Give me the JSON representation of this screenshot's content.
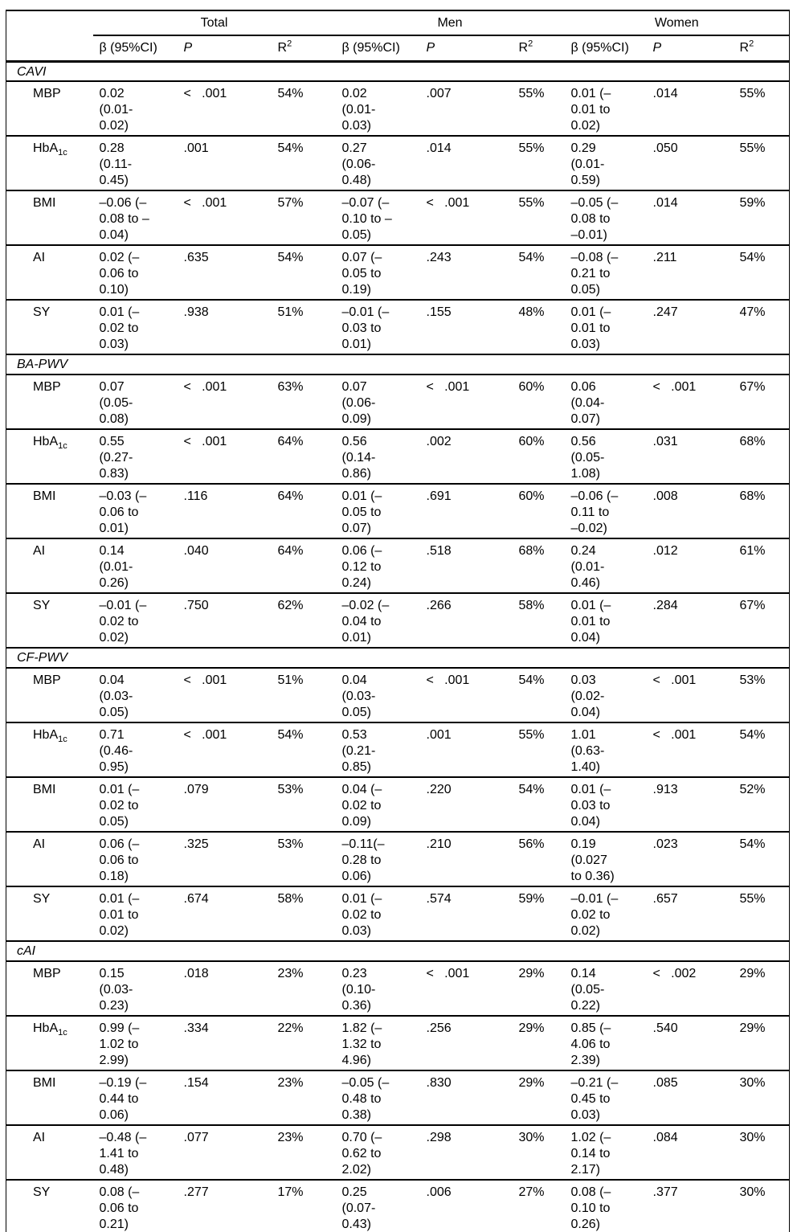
{
  "table": {
    "group_headers": [
      "Total",
      "Men",
      "Women"
    ],
    "col_headers": {
      "beta": "β (95%CI)",
      "p": "P",
      "r2_base": "R",
      "r2_sup": "2"
    },
    "sections": [
      {
        "name": "CAVI",
        "rows": [
          {
            "label": "MBP",
            "sub": "",
            "cells": [
              {
                "beta": "0.02\n(0.01-\n0.02)",
                "p": "<   .001",
                "r2": "54%"
              },
              {
                "beta": "0.02\n(0.01-\n0.03)",
                "p": ".007",
                "r2": "55%"
              },
              {
                "beta": "0.01 (–\n0.01 to\n0.02)",
                "p": ".014",
                "r2": "55%"
              }
            ]
          },
          {
            "label": "HbA",
            "sub": "1c",
            "cells": [
              {
                "beta": "0.28\n(0.11-\n0.45)",
                "p": ".001",
                "r2": "54%"
              },
              {
                "beta": "0.27\n(0.06-\n0.48)",
                "p": ".014",
                "r2": "55%"
              },
              {
                "beta": "0.29\n(0.01-\n0.59)",
                "p": ".050",
                "r2": "55%"
              }
            ]
          },
          {
            "label": "BMI",
            "sub": "",
            "cells": [
              {
                "beta": "–0.06 (–\n0.08 to –\n0.04)",
                "p": "<   .001",
                "r2": "57%"
              },
              {
                "beta": "–0.07 (–\n0.10 to –\n0.05)",
                "p": "<   .001",
                "r2": "55%"
              },
              {
                "beta": "–0.05 (–\n0.08 to\n–0.01)",
                "p": ".014",
                "r2": "59%"
              }
            ]
          },
          {
            "label": "AI",
            "sub": "",
            "cells": [
              {
                "beta": "0.02 (–\n0.06 to\n0.10)",
                "p": ".635",
                "r2": "54%"
              },
              {
                "beta": "0.07 (–\n0.05 to\n0.19)",
                "p": ".243",
                "r2": "54%"
              },
              {
                "beta": "–0.08 (–\n0.21 to\n0.05)",
                "p": ".211",
                "r2": "54%"
              }
            ]
          },
          {
            "label": "SY",
            "sub": "",
            "cells": [
              {
                "beta": "0.01 (–\n0.02 to\n0.03)",
                "p": ".938",
                "r2": "51%"
              },
              {
                "beta": "–0.01 (–\n0.03 to\n0.01)",
                "p": ".155",
                "r2": "48%"
              },
              {
                "beta": "0.01 (–\n0.01 to\n0.03)",
                "p": ".247",
                "r2": "47%"
              }
            ]
          }
        ]
      },
      {
        "name": "BA-PWV",
        "rows": [
          {
            "label": "MBP",
            "sub": "",
            "cells": [
              {
                "beta": "0.07\n(0.05-\n0.08)",
                "p": "<   .001",
                "r2": "63%"
              },
              {
                "beta": "0.07\n(0.06-\n0.09)",
                "p": "<   .001",
                "r2": "60%"
              },
              {
                "beta": "0.06\n(0.04-\n0.07)",
                "p": "<   .001",
                "r2": "67%"
              }
            ]
          },
          {
            "label": "HbA",
            "sub": "1c",
            "cells": [
              {
                "beta": "0.55\n(0.27-\n0.83)",
                "p": "<   .001",
                "r2": "64%"
              },
              {
                "beta": "0.56\n(0.14-\n0.86)",
                "p": ".002",
                "r2": "60%"
              },
              {
                "beta": "0.56\n(0.05-\n1.08)",
                "p": ".031",
                "r2": "68%"
              }
            ]
          },
          {
            "label": "BMI",
            "sub": "",
            "cells": [
              {
                "beta": "–0.03 (–\n0.06 to\n0.01)",
                "p": ".116",
                "r2": "64%"
              },
              {
                "beta": "0.01 (–\n0.05 to\n0.07)",
                "p": ".691",
                "r2": "60%"
              },
              {
                "beta": "–0.06 (–\n0.11 to\n–0.02)",
                "p": ".008",
                "r2": "68%"
              }
            ]
          },
          {
            "label": "AI",
            "sub": "",
            "cells": [
              {
                "beta": "0.14\n(0.01-\n0.26)",
                "p": ".040",
                "r2": "64%"
              },
              {
                "beta": "0.06 (–\n0.12 to\n0.24)",
                "p": ".518",
                "r2": "68%"
              },
              {
                "beta": "0.24\n(0.01-\n0.46)",
                "p": ".012",
                "r2": "61%"
              }
            ]
          },
          {
            "label": "SY",
            "sub": "",
            "cells": [
              {
                "beta": "–0.01 (–\n0.02 to\n0.02)",
                "p": ".750",
                "r2": "62%"
              },
              {
                "beta": "–0.02 (–\n0.04 to\n0.01)",
                "p": ".266",
                "r2": "58%"
              },
              {
                "beta": "0.01 (–\n0.01 to\n0.04)",
                "p": ".284",
                "r2": "67%"
              }
            ]
          }
        ]
      },
      {
        "name": "CF-PWV",
        "rows": [
          {
            "label": "MBP",
            "sub": "",
            "cells": [
              {
                "beta": "0.04\n(0.03-\n0.05)",
                "p": "<   .001",
                "r2": "51%"
              },
              {
                "beta": "0.04\n(0.03-\n0.05)",
                "p": "<   .001",
                "r2": "54%"
              },
              {
                "beta": "0.03\n(0.02-\n0.04)",
                "p": "<   .001",
                "r2": "53%"
              }
            ]
          },
          {
            "label": "HbA",
            "sub": "1c",
            "cells": [
              {
                "beta": "0.71\n(0.46-\n0.95)",
                "p": "<   .001",
                "r2": "54%"
              },
              {
                "beta": "0.53\n(0.21-\n0.85)",
                "p": ".001",
                "r2": "55%"
              },
              {
                "beta": "1.01\n(0.63-\n1.40)",
                "p": "<   .001",
                "r2": "54%"
              }
            ]
          },
          {
            "label": "BMI",
            "sub": "",
            "cells": [
              {
                "beta": "0.01 (–\n0.02 to\n0.05)",
                "p": ".079",
                "r2": "53%"
              },
              {
                "beta": "0.04 (–\n0.02 to\n0.09)",
                "p": ".220",
                "r2": "54%"
              },
              {
                "beta": "0.01 (–\n0.03 to\n0.04)",
                "p": ".913",
                "r2": "52%"
              }
            ]
          },
          {
            "label": "AI",
            "sub": "",
            "cells": [
              {
                "beta": "0.06 (–\n0.06 to\n0.18)",
                "p": ".325",
                "r2": "53%"
              },
              {
                "beta": "–0.11(–\n0.28 to\n0.06)",
                "p": ".210",
                "r2": "56%"
              },
              {
                "beta": "0.19\n(0.027\nto 0.36)",
                "p": ".023",
                "r2": "54%"
              }
            ]
          },
          {
            "label": "SY",
            "sub": "",
            "cells": [
              {
                "beta": "0.01 (–\n0.01 to\n0.02)",
                "p": ".674",
                "r2": "58%"
              },
              {
                "beta": "0.01 (–\n0.02 to\n0.03)",
                "p": ".574",
                "r2": "59%"
              },
              {
                "beta": "–0.01 (–\n0.02 to\n0.02)",
                "p": ".657",
                "r2": "55%"
              }
            ]
          }
        ]
      },
      {
        "name": "cAI",
        "rows": [
          {
            "label": "MBP",
            "sub": "",
            "cells": [
              {
                "beta": "0.15\n(0.03-\n0.23)",
                "p": ".018",
                "r2": "23%"
              },
              {
                "beta": "0.23\n(0.10-\n0.36)",
                "p": "<   .001",
                "r2": "29%"
              },
              {
                "beta": "0.14\n(0.05-\n0.22)",
                "p": "<   .002",
                "r2": "29%"
              }
            ]
          },
          {
            "label": "HbA",
            "sub": "1c",
            "cells": [
              {
                "beta": "0.99 (–\n1.02 to\n2.99)",
                "p": ".334",
                "r2": "22%"
              },
              {
                "beta": "1.82 (–\n1.32 to\n4.96)",
                "p": ".256",
                "r2": "29%"
              },
              {
                "beta": "0.85 (–\n4.06 to\n2.39)",
                "p": ".540",
                "r2": "29%"
              }
            ]
          },
          {
            "label": "BMI",
            "sub": "",
            "cells": [
              {
                "beta": "–0.19 (–\n0.44 to\n0.06)",
                "p": ".154",
                "r2": "23%"
              },
              {
                "beta": "–0.05 (–\n0.48 to\n0.38)",
                "p": ".830",
                "r2": "29%"
              },
              {
                "beta": "–0.21 (–\n0.45 to\n0.03)",
                "p": ".085",
                "r2": "30%"
              }
            ]
          },
          {
            "label": "AI",
            "sub": "",
            "cells": [
              {
                "beta": "–0.48 (–\n1.41 to\n0.48)",
                "p": ".077",
                "r2": "23%"
              },
              {
                "beta": "0.70 (–\n0.62 to\n2.02)",
                "p": ".298",
                "r2": "30%"
              },
              {
                "beta": "1.02 (–\n0.14 to\n2.17)",
                "p": ".084",
                "r2": "30%"
              }
            ]
          },
          {
            "label": "SY",
            "sub": "",
            "cells": [
              {
                "beta": "0.08 (–\n0.06 to\n0.21)",
                "p": ".277",
                "r2": "17%"
              },
              {
                "beta": "0.25\n(0.07-\n0.43)",
                "p": ".006",
                "r2": "27%"
              },
              {
                "beta": "0.08 (–\n0.10 to\n0.26)",
                "p": ".377",
                "r2": "30%"
              }
            ]
          }
        ]
      }
    ]
  }
}
